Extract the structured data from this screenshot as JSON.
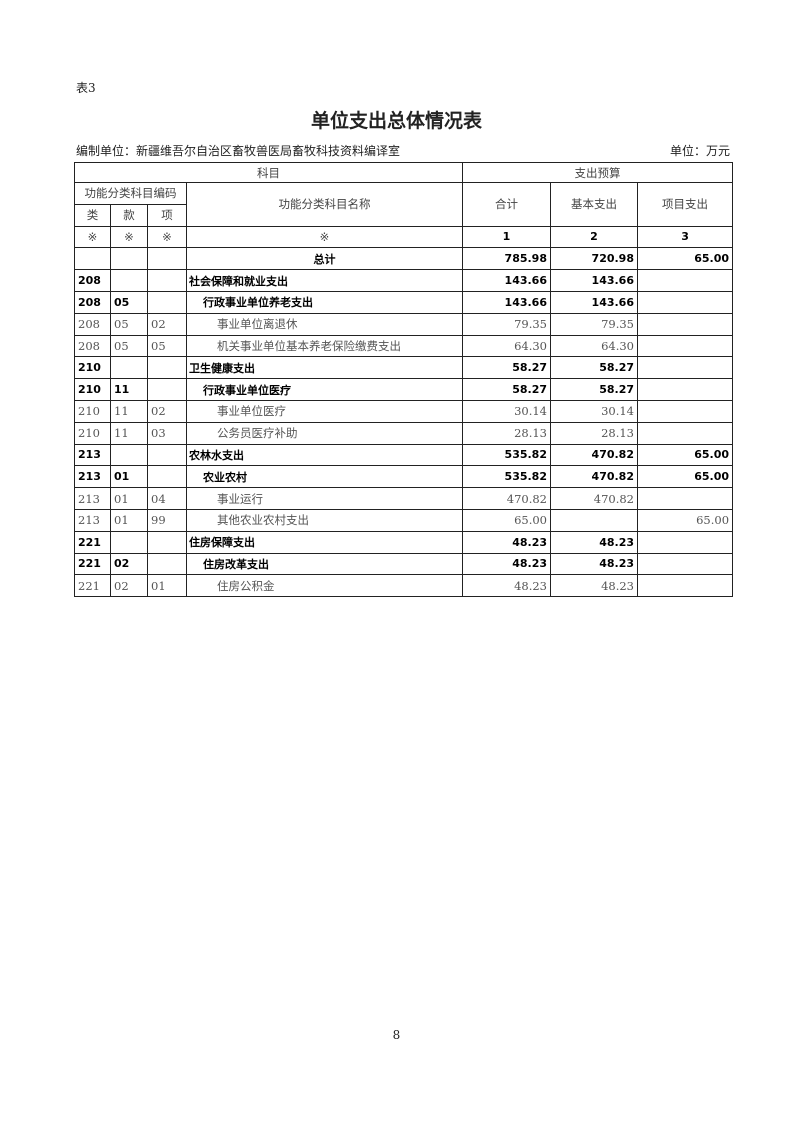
{
  "doc": {
    "table_no": "表3",
    "title": "单位支出总体情况表",
    "compiler": "编制单位：新疆维吾尔自治区畜牧兽医局畜牧科技资料编译室",
    "unit": "单位：万元",
    "page_number": "8"
  },
  "header": {
    "subject": "科目",
    "budget": "支出预算",
    "code_group": "功能分类科目编码",
    "name": "功能分类科目名称",
    "lei": "类",
    "kuan": "款",
    "xiang": "项",
    "total": "合计",
    "basic": "基本支出",
    "project": "项目支出",
    "mark": "※",
    "col1": "1",
    "col2": "2",
    "col3": "3"
  },
  "total_row": {
    "name": "总计",
    "total": "785.98",
    "basic": "720.98",
    "project": "65.00"
  },
  "rows": [
    {
      "lei": "208",
      "kuan": "",
      "xiang": "",
      "name": "社会保障和就业支出",
      "total": "143.66",
      "basic": "143.66",
      "project": "",
      "level": 1
    },
    {
      "lei": "208",
      "kuan": "05",
      "xiang": "",
      "name": "行政事业单位养老支出",
      "total": "143.66",
      "basic": "143.66",
      "project": "",
      "level": 2
    },
    {
      "lei": "208",
      "kuan": "05",
      "xiang": "02",
      "name": "事业单位离退休",
      "total": "79.35",
      "basic": "79.35",
      "project": "",
      "level": 3
    },
    {
      "lei": "208",
      "kuan": "05",
      "xiang": "05",
      "name": "机关事业单位基本养老保险缴费支出",
      "total": "64.30",
      "basic": "64.30",
      "project": "",
      "level": 3
    },
    {
      "lei": "210",
      "kuan": "",
      "xiang": "",
      "name": "卫生健康支出",
      "total": "58.27",
      "basic": "58.27",
      "project": "",
      "level": 1
    },
    {
      "lei": "210",
      "kuan": "11",
      "xiang": "",
      "name": "行政事业单位医疗",
      "total": "58.27",
      "basic": "58.27",
      "project": "",
      "level": 2
    },
    {
      "lei": "210",
      "kuan": "11",
      "xiang": "02",
      "name": "事业单位医疗",
      "total": "30.14",
      "basic": "30.14",
      "project": "",
      "level": 3
    },
    {
      "lei": "210",
      "kuan": "11",
      "xiang": "03",
      "name": "公务员医疗补助",
      "total": "28.13",
      "basic": "28.13",
      "project": "",
      "level": 3
    },
    {
      "lei": "213",
      "kuan": "",
      "xiang": "",
      "name": "农林水支出",
      "total": "535.82",
      "basic": "470.82",
      "project": "65.00",
      "level": 1
    },
    {
      "lei": "213",
      "kuan": "01",
      "xiang": "",
      "name": "农业农村",
      "total": "535.82",
      "basic": "470.82",
      "project": "65.00",
      "level": 2
    },
    {
      "lei": "213",
      "kuan": "01",
      "xiang": "04",
      "name": "事业运行",
      "total": "470.82",
      "basic": "470.82",
      "project": "",
      "level": 3
    },
    {
      "lei": "213",
      "kuan": "01",
      "xiang": "99",
      "name": "其他农业农村支出",
      "total": "65.00",
      "basic": "",
      "project": "65.00",
      "level": 3
    },
    {
      "lei": "221",
      "kuan": "",
      "xiang": "",
      "name": "住房保障支出",
      "total": "48.23",
      "basic": "48.23",
      "project": "",
      "level": 1
    },
    {
      "lei": "221",
      "kuan": "02",
      "xiang": "",
      "name": "住房改革支出",
      "total": "48.23",
      "basic": "48.23",
      "project": "",
      "level": 2
    },
    {
      "lei": "221",
      "kuan": "02",
      "xiang": "01",
      "name": "住房公积金",
      "total": "48.23",
      "basic": "48.23",
      "project": "",
      "level": 3
    }
  ]
}
